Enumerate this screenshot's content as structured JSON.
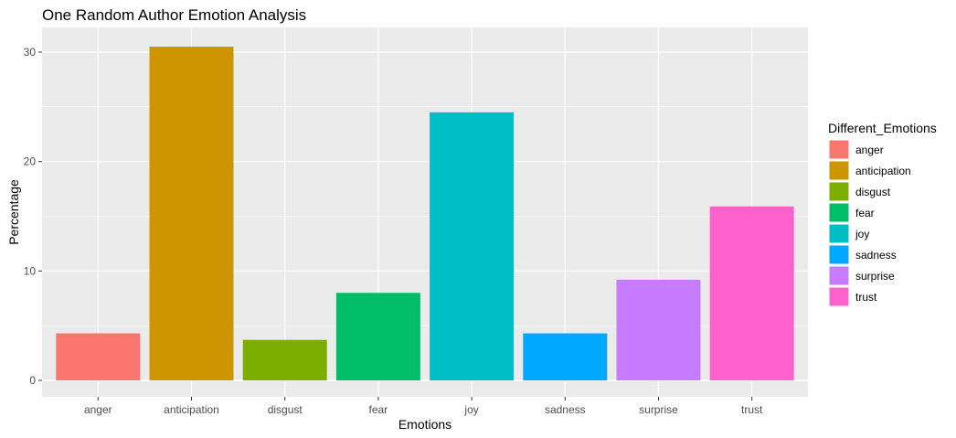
{
  "chart_data": {
    "type": "bar",
    "title": "One Random Author Emotion Analysis",
    "xlabel": "Emotions",
    "ylabel": "Percentage",
    "categories": [
      "anger",
      "anticipation",
      "disgust",
      "fear",
      "joy",
      "sadness",
      "surprise",
      "trust"
    ],
    "values": [
      4.3,
      30.5,
      3.7,
      8.0,
      24.5,
      4.3,
      9.2,
      15.9
    ],
    "colors": [
      "#F8766D",
      "#CD9600",
      "#7CAE00",
      "#00BE67",
      "#00BFC4",
      "#00A9FF",
      "#C77CFF",
      "#FF61CC"
    ],
    "ylim": [
      0,
      32
    ],
    "yticks": [
      0,
      10,
      20,
      30
    ],
    "grid": true,
    "legend": {
      "title": "Different_Emotions",
      "position": "right"
    }
  }
}
